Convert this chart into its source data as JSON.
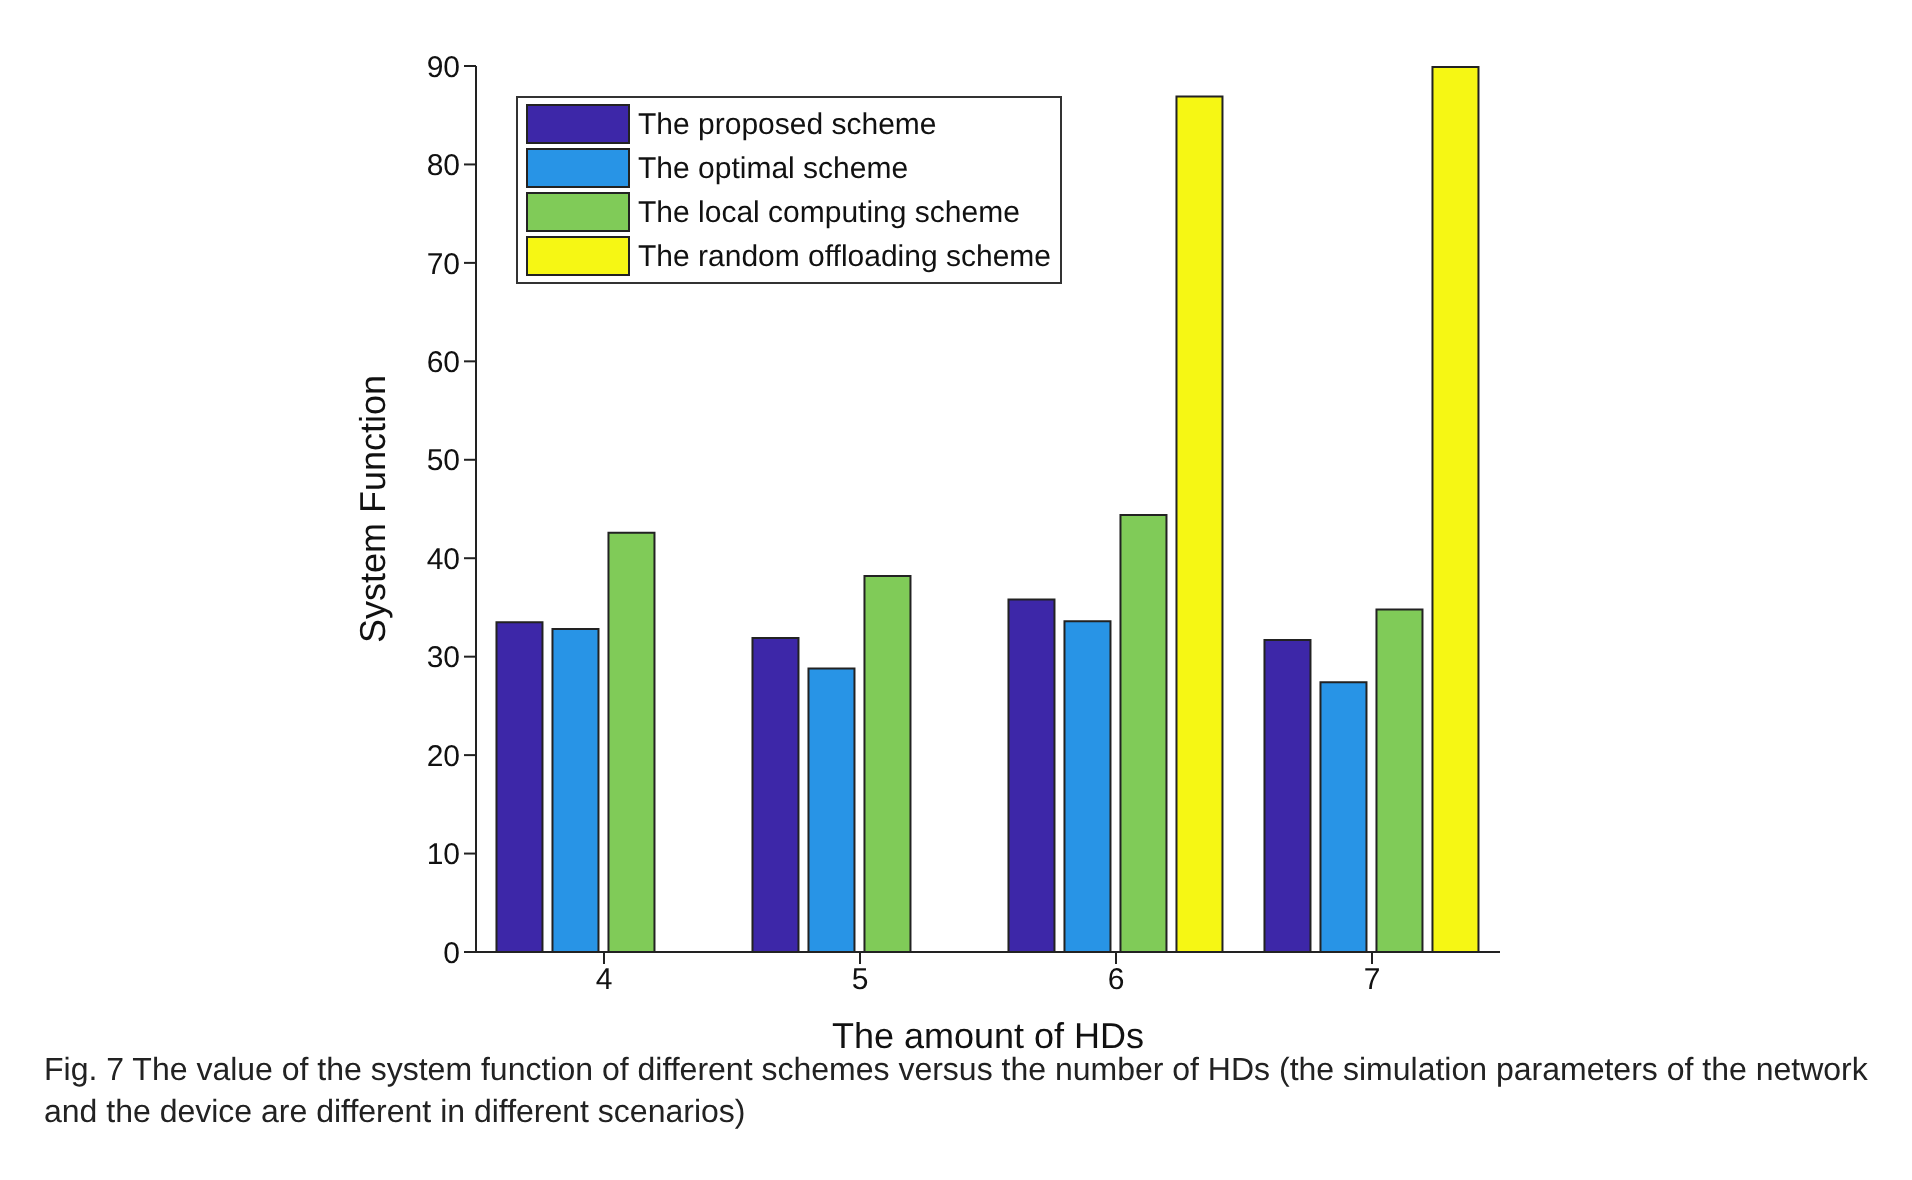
{
  "chart_data": {
    "type": "bar",
    "xlabel": "The amount of HDs",
    "ylabel": "System Function",
    "categories": [
      "4",
      "5",
      "6",
      "7"
    ],
    "series": [
      {
        "name": "The proposed scheme",
        "color": "#3d27a8",
        "values": [
          33.5,
          31.9,
          35.8,
          31.7
        ]
      },
      {
        "name": "The optimal scheme",
        "color": "#2894e6",
        "values": [
          32.8,
          28.8,
          33.6,
          27.4
        ]
      },
      {
        "name": "The local computing scheme",
        "color": "#80cb58",
        "values": [
          42.6,
          38.2,
          44.4,
          34.8
        ]
      },
      {
        "name": "The random offloading scheme",
        "color": "#f6f714",
        "values": [
          null,
          null,
          86.9,
          89.9
        ]
      }
    ],
    "ylim": [
      0,
      90
    ],
    "yticks": [
      0,
      10,
      20,
      30,
      40,
      50,
      60,
      70,
      80,
      90
    ],
    "grid": false,
    "legend": "top left",
    "annotations": [
      "Fig. 7  The value of the system function of different schemes versus the number of HDs (the simulation parameters of the network and the device are different in different scenarios)"
    ]
  }
}
